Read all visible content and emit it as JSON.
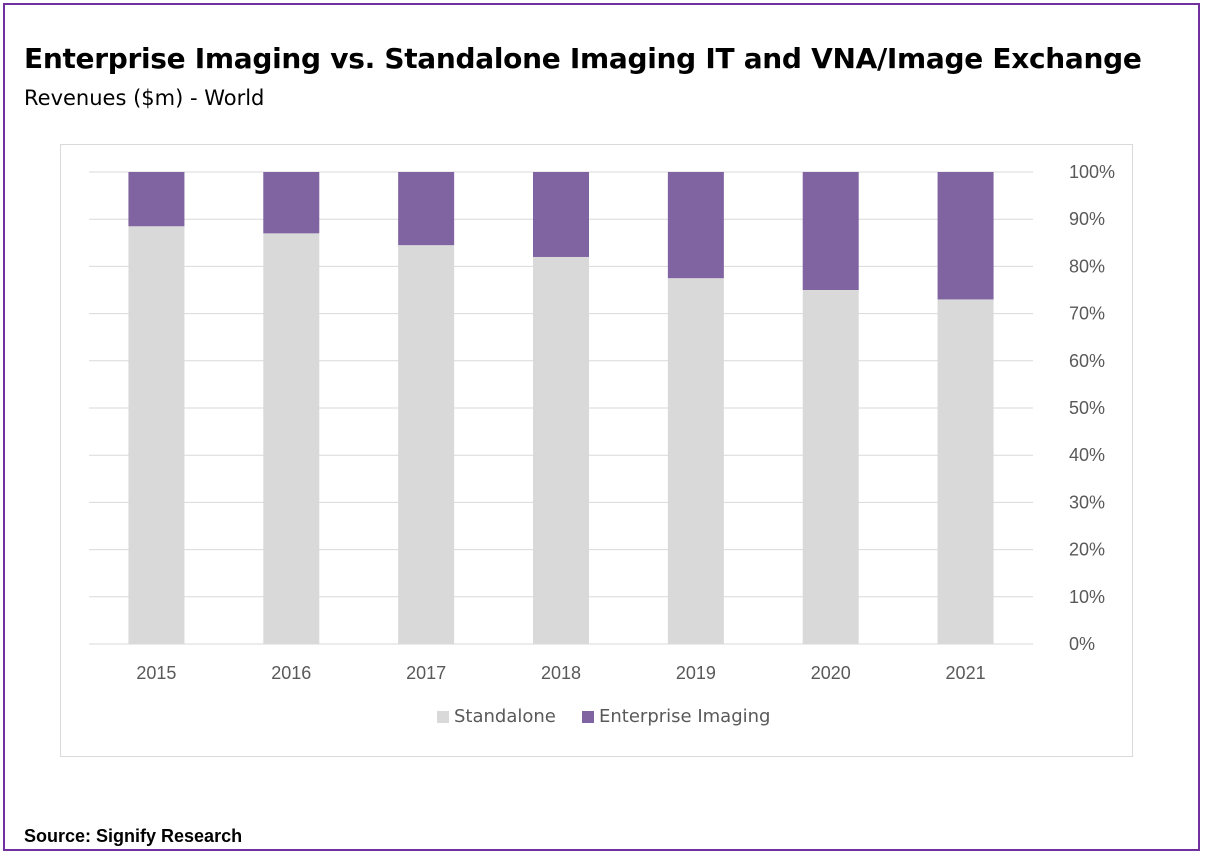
{
  "header": {
    "title": "Enterprise Imaging vs. Standalone Imaging IT and VNA/Image Exchange",
    "subtitle": "Revenues ($m) - World"
  },
  "footer": {
    "source": "Source: Signify Research"
  },
  "colors": {
    "frame": "#7030a0",
    "standalone": "#d9d9d9",
    "enterprise": "#8064a2",
    "gridline": "#d9d9d9",
    "axis_text": "#595959"
  },
  "chart_data": {
    "type": "bar",
    "stacked": true,
    "percent_stacked": true,
    "categories": [
      "2015",
      "2016",
      "2017",
      "2018",
      "2019",
      "2020",
      "2021"
    ],
    "series": [
      {
        "name": "Standalone",
        "values": [
          88.5,
          87,
          84.5,
          82,
          77.5,
          75,
          73
        ],
        "color": "#d9d9d9"
      },
      {
        "name": "Enterprise Imaging",
        "values": [
          11.5,
          13,
          15.5,
          18,
          22.5,
          25,
          27
        ],
        "color": "#8064a2"
      }
    ],
    "y_ticks": [
      "0%",
      "10%",
      "20%",
      "30%",
      "40%",
      "50%",
      "60%",
      "70%",
      "80%",
      "90%",
      "100%"
    ],
    "ylim": [
      0,
      100
    ],
    "y_axis_side": "right",
    "grid": true,
    "legend_position": "bottom"
  }
}
